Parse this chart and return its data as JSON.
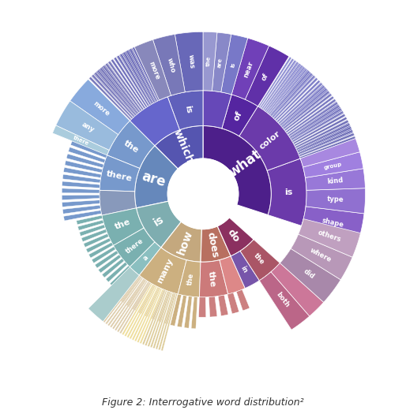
{
  "background": "#ffffff",
  "caption": "Figure 2: Interrogative word distribution²",
  "r_hole": 0.3,
  "r_inner": 0.58,
  "r_outer": 0.88,
  "r_tip": 1.38,
  "inner_segments": [
    {
      "label": "what",
      "color": "#4d1f8a",
      "s": -18,
      "e": 90
    },
    {
      "label": "which",
      "color": "#5555b0",
      "s": 90,
      "e": 135
    },
    {
      "label": "are",
      "color": "#6688bb",
      "s": 135,
      "e": 192
    },
    {
      "label": "is",
      "color": "#7eadb0",
      "s": 192,
      "e": 232
    },
    {
      "label": "how",
      "color": "#c4a87e",
      "s": 232,
      "e": 268
    },
    {
      "label": "does",
      "color": "#b87060",
      "s": 268,
      "e": 294
    },
    {
      "label": "do",
      "color": "#8b3060",
      "s": 294,
      "e": 318
    }
  ],
  "mid_segments": [
    {
      "label": "is",
      "color": "#6b3aaa",
      "s": -18,
      "e": 20,
      "tc": "white"
    },
    {
      "label": "color",
      "color": "#6b3aaa",
      "s": 20,
      "e": 58,
      "tc": "white"
    },
    {
      "label": "of",
      "color": "#5525a0",
      "s": 58,
      "e": 74,
      "tc": "white"
    },
    {
      "label": "",
      "color": "#6648b8",
      "s": 74,
      "e": 90,
      "tc": "white"
    },
    {
      "label": "is",
      "color": "#6060bb",
      "s": 90,
      "e": 110,
      "tc": "white"
    },
    {
      "label": "",
      "color": "#6666cc",
      "s": 110,
      "e": 135,
      "tc": "white"
    },
    {
      "label": "the",
      "color": "#7799cc",
      "s": 135,
      "e": 158,
      "tc": "white"
    },
    {
      "label": "there",
      "color": "#7799cc",
      "s": 158,
      "e": 178,
      "tc": "white"
    },
    {
      "label": "",
      "color": "#8899bb",
      "s": 178,
      "e": 192,
      "tc": "white"
    },
    {
      "label": "the",
      "color": "#7ab0b0",
      "s": 192,
      "e": 210,
      "tc": "white"
    },
    {
      "label": "there",
      "color": "#7ab0b0",
      "s": 210,
      "e": 225,
      "tc": "white"
    },
    {
      "label": "a",
      "color": "#8bbfc0",
      "s": 225,
      "e": 232,
      "tc": "white"
    },
    {
      "label": "many",
      "color": "#ccb080",
      "s": 232,
      "e": 256,
      "tc": "white"
    },
    {
      "label": "the",
      "color": "#ccb080",
      "s": 256,
      "e": 268,
      "tc": "white"
    },
    {
      "label": "the",
      "color": "#cc7a7a",
      "s": 268,
      "e": 284,
      "tc": "white"
    },
    {
      "label": "",
      "color": "#dd8888",
      "s": 284,
      "e": 294,
      "tc": "white"
    },
    {
      "label": "in",
      "color": "#7755aa",
      "s": 294,
      "e": 303,
      "tc": "white"
    },
    {
      "label": "the",
      "color": "#aa5566",
      "s": 303,
      "e": 318,
      "tc": "white"
    }
  ],
  "outer_segments": [
    {
      "label": "shape",
      "color": "#8860c8",
      "s": -18,
      "e": -7,
      "stripe": false
    },
    {
      "label": "type",
      "color": "#9070d0",
      "s": -7,
      "e": 2,
      "stripe": false
    },
    {
      "label": "kind",
      "color": "#9878d8",
      "s": 2,
      "e": 9,
      "stripe": false
    },
    {
      "label": "group",
      "color": "#a080e0",
      "s": 9,
      "e": 15,
      "stripe": false
    },
    {
      "label": "",
      "color": "#a888e0",
      "s": 15,
      "e": 20,
      "stripe": false
    },
    {
      "label": "of",
      "color": "#6030a8",
      "s": 58,
      "e": 66,
      "stripe": false
    },
    {
      "label": "near",
      "color": "#7040b8",
      "s": 66,
      "e": 74,
      "stripe": false
    },
    {
      "label": "is",
      "color": "#7878c8",
      "s": 74,
      "e": 80,
      "stripe": false
    },
    {
      "label": "are",
      "color": "#8888c8",
      "s": 80,
      "e": 85,
      "stripe": false
    },
    {
      "label": "the",
      "color": "#9898d0",
      "s": 85,
      "e": 90,
      "stripe": false
    },
    {
      "label": "of",
      "color": "#7070b8",
      "s": 20,
      "e": 30,
      "stripe": true
    },
    {
      "label": "",
      "color": "#7878c0",
      "s": 30,
      "e": 40,
      "stripe": true
    },
    {
      "label": "",
      "color": "#8080c8",
      "s": 40,
      "e": 50,
      "stripe": true
    },
    {
      "label": "",
      "color": "#8888d0",
      "s": 50,
      "e": 58,
      "stripe": true
    },
    {
      "label": "was",
      "color": "#6868b8",
      "s": 90,
      "e": 100,
      "stripe": false
    },
    {
      "label": "who",
      "color": "#7878b8",
      "s": 100,
      "e": 108,
      "stripe": false
    },
    {
      "label": "more",
      "color": "#8888bb",
      "s": 108,
      "e": 115,
      "stripe": false
    },
    {
      "label": "",
      "color": "#7070bb",
      "s": 115,
      "e": 125,
      "stripe": true
    },
    {
      "label": "",
      "color": "#7878bb",
      "s": 125,
      "e": 135,
      "stripe": true
    },
    {
      "label": "more",
      "color": "#88aadd",
      "s": 135,
      "e": 145,
      "stripe": false
    },
    {
      "label": "any",
      "color": "#99bbdd",
      "s": 145,
      "e": 155,
      "stripe": false
    },
    {
      "label": "there",
      "color": "#aaccdd",
      "s": 155,
      "e": 158,
      "stripe": false
    },
    {
      "label": "",
      "color": "#aacccc",
      "s": 225,
      "e": 232,
      "stripe": false
    },
    {
      "label": "",
      "color": "#ddccaa",
      "s": 232,
      "e": 240,
      "stripe": true
    },
    {
      "label": "",
      "color": "#eedd99",
      "s": 240,
      "e": 248,
      "stripe": true
    },
    {
      "label": "",
      "color": "#ddcc99",
      "s": 248,
      "e": 256,
      "stripe": true
    },
    {
      "label": "both",
      "color": "#bb6688",
      "s": 303,
      "e": 311,
      "stripe": false
    },
    {
      "label": "",
      "color": "#cc7799",
      "s": 311,
      "e": 318,
      "stripe": false
    },
    {
      "label": "did",
      "color": "#a888aa",
      "s": 318,
      "e": 328,
      "stripe": false
    },
    {
      "label": "where",
      "color": "#b898b8",
      "s": 328,
      "e": 337,
      "stripe": false
    },
    {
      "label": "others",
      "color": "#c0a0c0",
      "s": 337,
      "e": 346,
      "stripe": false
    }
  ],
  "spike_groups": [
    {
      "s": 20,
      "e": 58,
      "color": "#7070c0",
      "n": 35,
      "r_in": 0.88,
      "r_out": 1.38
    },
    {
      "s": 90,
      "e": 135,
      "color": "#6868b0",
      "n": 40,
      "r_in": 0.88,
      "r_out": 1.38
    },
    {
      "s": 135,
      "e": 192,
      "color": "#7799cc",
      "n": 20,
      "r_in": 0.88,
      "r_out": 1.2
    },
    {
      "s": 192,
      "e": 232,
      "color": "#7ab0b0",
      "n": 15,
      "r_in": 0.88,
      "r_out": 1.1
    },
    {
      "s": 232,
      "e": 268,
      "color": "#ccb080",
      "n": 12,
      "r_in": 0.88,
      "r_out": 1.15
    },
    {
      "s": 268,
      "e": 294,
      "color": "#cc8080",
      "n": 5,
      "r_in": 0.88,
      "r_out": 1.05
    },
    {
      "s": 303,
      "e": 346,
      "color": "#bb7799",
      "n": 20,
      "r_in": 0.88,
      "r_out": 1.3
    }
  ]
}
